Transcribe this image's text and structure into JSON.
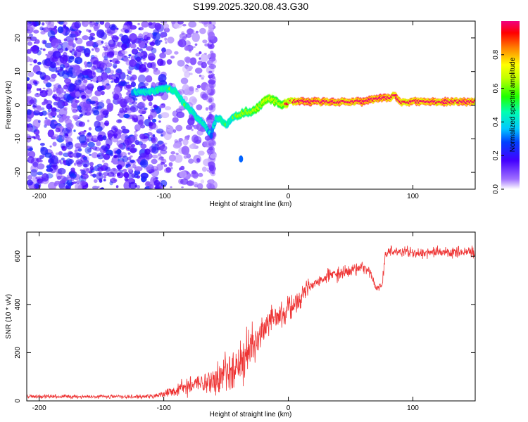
{
  "chart_data": [
    {
      "type": "heatmap",
      "title": "S199.2025.320.08.43.G30",
      "xlabel": "Height of straight line (km)",
      "ylabel": "Frequency (Hz)",
      "xlim": [
        -210,
        150
      ],
      "ylim": [
        -25,
        25
      ],
      "xticks": [
        -200,
        -100,
        0,
        100
      ],
      "yticks": [
        -20,
        -10,
        0,
        10,
        20
      ],
      "colorbar": {
        "label": "Normalized spectral amplitude",
        "range": [
          0,
          1
        ],
        "ticks": [
          0.0,
          0.2,
          0.4,
          0.6,
          0.8
        ],
        "tick_labels": [
          "0.0",
          "0.2",
          "0.4",
          "0.6",
          "0.8"
        ]
      },
      "ridge": {
        "x": [
          -125,
          -110,
          -100,
          -95,
          -90,
          -85,
          -80,
          -75,
          -70,
          -65,
          -62,
          -58,
          -55,
          -50,
          -45,
          -40,
          -35,
          -30,
          -25,
          -20,
          -15,
          -10,
          -5,
          0,
          5,
          10,
          20,
          30,
          40,
          50,
          60,
          70,
          75,
          80,
          85,
          90,
          95,
          100,
          105,
          110,
          120,
          130,
          140,
          150
        ],
        "y": [
          4,
          4,
          5,
          5,
          4,
          1,
          -1,
          -3,
          -5,
          -7,
          -9,
          -4,
          -4,
          -6,
          -4,
          -3,
          -2,
          -2,
          -1,
          1,
          2,
          1,
          0,
          1,
          1,
          1,
          1,
          1,
          1,
          1,
          1,
          2,
          2,
          2,
          3,
          1,
          1,
          1,
          1,
          1,
          1,
          1,
          1,
          1
        ],
        "amp": [
          0.25,
          0.3,
          0.35,
          0.35,
          0.35,
          0.35,
          0.35,
          0.3,
          0.3,
          0.3,
          0.2,
          0.3,
          0.35,
          0.35,
          0.35,
          0.4,
          0.45,
          0.5,
          0.5,
          0.55,
          0.55,
          0.5,
          0.5,
          0.7,
          0.8,
          0.9,
          0.9,
          0.9,
          0.85,
          0.85,
          0.9,
          0.9,
          0.9,
          0.9,
          0.9,
          0.85,
          0.85,
          0.85,
          0.85,
          0.85,
          0.85,
          0.85,
          0.85,
          0.85
        ]
      }
    },
    {
      "type": "line",
      "xlabel": "Height of straight line (km)",
      "ylabel": "SNR (10 * v/v)",
      "xlim": [
        -210,
        150
      ],
      "ylim": [
        0,
        700
      ],
      "xticks": [
        -200,
        -100,
        0,
        100
      ],
      "yticks": [
        0,
        200,
        400,
        600
      ],
      "series": [
        {
          "name": "SNR",
          "color": "#ee3333",
          "x": [
            -210,
            -180,
            -150,
            -120,
            -105,
            -95,
            -85,
            -75,
            -65,
            -55,
            -50,
            -45,
            -40,
            -35,
            -30,
            -25,
            -20,
            -15,
            -10,
            -5,
            0,
            5,
            10,
            15,
            20,
            30,
            40,
            50,
            60,
            65,
            70,
            75,
            78,
            80,
            90,
            100,
            110,
            120,
            130,
            140,
            150
          ],
          "y": [
            20,
            18,
            18,
            17,
            20,
            35,
            55,
            70,
            80,
            90,
            120,
            140,
            150,
            180,
            220,
            260,
            300,
            320,
            340,
            360,
            380,
            400,
            430,
            460,
            480,
            510,
            530,
            545,
            555,
            540,
            470,
            480,
            600,
            620,
            620,
            615,
            615,
            620,
            615,
            620,
            615
          ],
          "noise": [
            10,
            10,
            10,
            10,
            12,
            25,
            50,
            60,
            70,
            90,
            100,
            110,
            120,
            140,
            120,
            110,
            90,
            80,
            80,
            70,
            70,
            60,
            60,
            50,
            45,
            40,
            40,
            35,
            30,
            30,
            20,
            20,
            40,
            35,
            30,
            30,
            30,
            30,
            30,
            30,
            30
          ]
        }
      ]
    }
  ]
}
